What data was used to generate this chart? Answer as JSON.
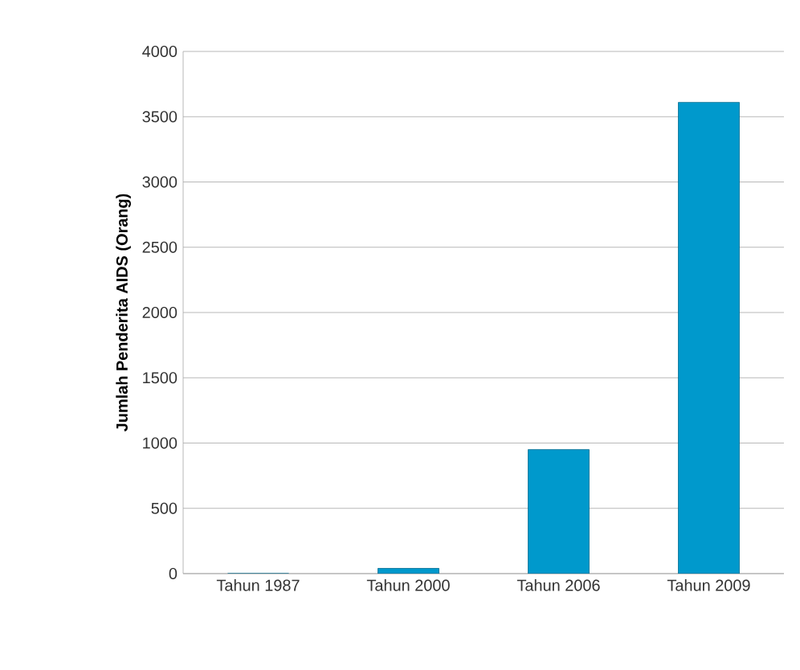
{
  "chart_data": {
    "type": "bar",
    "ylabel": "Jumlah Penderita AIDS (Orang)",
    "categories": [
      "Tahun 1987",
      "Tahun 2000",
      "Tahun 2006",
      "Tahun 2009"
    ],
    "values": [
      0,
      40,
      950,
      3610
    ],
    "color": "#0099cc",
    "ylim": [
      0,
      4000
    ],
    "yticks": [
      0,
      500,
      1000,
      1500,
      2000,
      2500,
      3000,
      3500,
      4000
    ],
    "grid": "y"
  }
}
